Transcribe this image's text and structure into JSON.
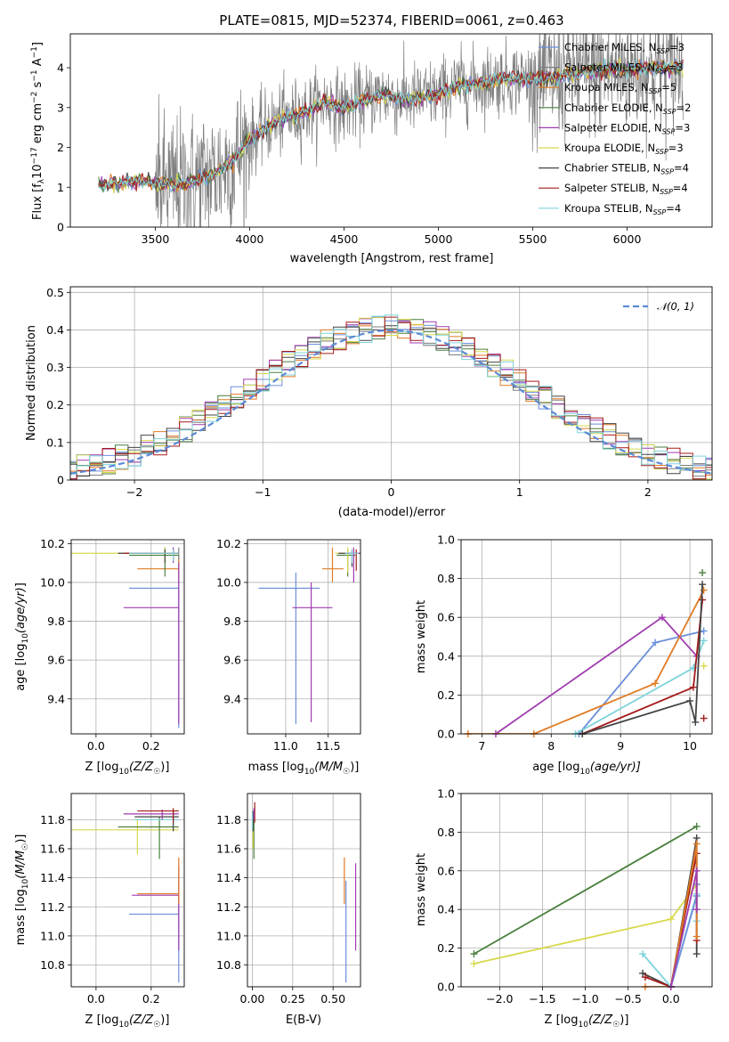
{
  "colors": {
    "CM": "#6b8fdb",
    "SM": "#7f7f7f",
    "KM": "#e07b24",
    "CE": "#4a7f3e",
    "SE": "#a03bb0",
    "KE": "#d7d94c",
    "CS": "#444444",
    "SS": "#a51b1b",
    "KS": "#7fd3db",
    "gauss": "#5b8ad6"
  },
  "chart_data": [
    {
      "type": "line",
      "title": "PLATE=0815, MJD=52374, FIBERID=0061, z=0.463",
      "xlabel": "wavelength [Angstrom, rest frame]",
      "ylabel": "Flux [f$_\\lambda$10$^{-17}$ erg cm$^{-2}$ s$^{-1}$ A$^{-1}$]",
      "ylabel_parts": {
        "a": "Flux [f",
        "b": "λ",
        "c": "10",
        "d": "−17",
        "e": " erg cm",
        "f": "−2",
        "g": " s",
        "h": "−1",
        "i": " A",
        "j": "−1",
        "k": "]"
      },
      "xlim": [
        3050,
        6450
      ],
      "ylim": [
        0,
        4.85
      ],
      "xticks": [
        3500,
        4000,
        4500,
        5000,
        5500,
        6000
      ],
      "yticks": [
        0,
        1,
        2,
        3,
        4
      ],
      "legend_position": "top-right",
      "series": [
        {
          "name": "Chabrier MILES, N",
          "sub": "SSP",
          "suffix": "=3",
          "color_key": "CM"
        },
        {
          "name": "Salpeter MILES, N",
          "sub": "SSP",
          "suffix": "=3",
          "color_key": "SM"
        },
        {
          "name": "Kroupa MILES, N",
          "sub": "SSP",
          "suffix": "=5",
          "color_key": "KM"
        },
        {
          "name": "Chabrier ELODIE, N",
          "sub": "SSP",
          "suffix": "=2",
          "color_key": "CE"
        },
        {
          "name": "Salpeter ELODIE, N",
          "sub": "SSP",
          "suffix": "=3",
          "color_key": "SE"
        },
        {
          "name": "Kroupa ELODIE, N",
          "sub": "SSP",
          "suffix": "=3",
          "color_key": "KE"
        },
        {
          "name": "Chabrier STELIB, N",
          "sub": "SSP",
          "suffix": "=4",
          "color_key": "CS"
        },
        {
          "name": "Salpeter STELIB, N",
          "sub": "SSP",
          "suffix": "=4",
          "color_key": "SS"
        },
        {
          "name": "Kroupa STELIB, N",
          "sub": "SSP",
          "suffix": "=4",
          "color_key": "KS"
        }
      ],
      "continuum": {
        "x": [
          3200,
          3300,
          3400,
          3500,
          3600,
          3700,
          3800,
          3900,
          4000,
          4100,
          4200,
          4300,
          4400,
          4500,
          4600,
          4700,
          4800,
          4900,
          5000,
          5100,
          5200,
          5300,
          5400,
          5500,
          5600,
          5700,
          5800,
          5900,
          6000,
          6100,
          6200,
          6300
        ],
        "y": [
          1.05,
          1.1,
          1.15,
          1.1,
          1.05,
          1.15,
          1.3,
          1.6,
          2.2,
          2.55,
          2.75,
          2.9,
          3.15,
          3.0,
          3.15,
          3.35,
          3.2,
          3.25,
          3.35,
          3.55,
          3.6,
          3.7,
          3.75,
          3.7,
          3.75,
          3.85,
          3.9,
          3.95,
          3.95,
          4.0,
          4.0,
          4.05
        ]
      }
    },
    {
      "type": "line",
      "xlabel": "(data-model)/error",
      "ylabel": "Normed distribution",
      "xlim": [
        -2.5,
        2.5
      ],
      "ylim": [
        0,
        0.515
      ],
      "xticks": [
        -2,
        -1,
        0,
        1,
        2
      ],
      "yticks": [
        0.0,
        0.1,
        0.2,
        0.3,
        0.4,
        0.5
      ],
      "legend_position": "top-right",
      "gauss_label": "𝒩(0, 1)",
      "bin_width": 0.1,
      "note": "step histograms of normalized residuals for each of the 9 model fits plus standard normal curve"
    },
    {
      "type": "scatter",
      "xlabel_main": "Z [log",
      "xlabel_tail": "(Z/Z",
      "xlabel_end": ")]",
      "ylabel": "age  [log10(age/yr)]",
      "xlim": [
        -0.09,
        0.32
      ],
      "ylim": [
        9.22,
        10.22
      ],
      "xticks": [
        0.0,
        0.2
      ],
      "yticks": [
        9.4,
        9.6,
        9.8,
        10.0,
        10.2
      ],
      "points": [
        {
          "k": "CM",
          "x": 0.3,
          "y": 9.97,
          "xl": 0.12,
          "xh": 0.3,
          "yl": 9.25,
          "yh": 10.14
        },
        {
          "k": "SM",
          "x": 0.3,
          "y": 10.15,
          "xl": 0.17,
          "xh": 0.3,
          "yl": 10.12,
          "yh": 10.18
        },
        {
          "k": "KM",
          "x": 0.3,
          "y": 10.07,
          "xl": 0.15,
          "xh": 0.3,
          "yl": 10.02,
          "yh": 10.12
        },
        {
          "k": "CE",
          "x": 0.25,
          "y": 10.14,
          "xl": 0.12,
          "xh": 0.3,
          "yl": 10.03,
          "yh": 10.18
        },
        {
          "k": "SE",
          "x": 0.28,
          "y": 10.15,
          "xl": 0.1,
          "xh": 0.3,
          "yl": 10.1,
          "yh": 10.18
        },
        {
          "k": "KE",
          "x": 0.25,
          "y": 10.15,
          "xl": -0.09,
          "xh": 0.3,
          "yl": 10.1,
          "yh": 10.18
        },
        {
          "k": "CS",
          "x": 0.25,
          "y": 10.15,
          "xl": 0.08,
          "xh": 0.3,
          "yl": 10.1,
          "yh": 10.17
        },
        {
          "k": "SS",
          "x": 0.28,
          "y": 10.15,
          "xl": 0.1,
          "xh": 0.3,
          "yl": 10.11,
          "yh": 10.17
        },
        {
          "k": "KS",
          "x": 0.28,
          "y": 10.15,
          "xl": 0.12,
          "xh": 0.3,
          "yl": 10.11,
          "yh": 10.17
        },
        {
          "k": "SE",
          "x": 0.3,
          "y": 9.87,
          "xl": 0.1,
          "xh": 0.3,
          "yl": 9.27,
          "yh": 10.1
        }
      ]
    },
    {
      "type": "scatter",
      "xlabel_main": "mass [log",
      "xlabel_tail": "(M/M",
      "xlabel_end": ")]",
      "xlim": [
        10.55,
        11.88
      ],
      "ylim": [
        9.22,
        10.22
      ],
      "xticks": [
        11.0,
        11.5
      ],
      "yticks": [
        9.4,
        9.6,
        9.8,
        10.0,
        10.2
      ],
      "points": [
        {
          "k": "CM",
          "x": 11.12,
          "y": 9.97,
          "xl": 10.68,
          "xh": 11.4,
          "yl": 9.27,
          "yh": 10.05
        },
        {
          "k": "SE",
          "x": 11.3,
          "y": 9.87,
          "xl": 11.08,
          "xh": 11.55,
          "yl": 9.28,
          "yh": 10.0
        },
        {
          "k": "KM",
          "x": 11.55,
          "y": 10.07,
          "xl": 11.43,
          "xh": 11.68,
          "yl": 10.0,
          "yh": 10.18
        },
        {
          "k": "CE",
          "x": 11.73,
          "y": 10.14,
          "xl": 11.6,
          "xh": 11.82,
          "yl": 10.03,
          "yh": 10.17
        },
        {
          "k": "KE",
          "x": 11.73,
          "y": 10.15,
          "xl": 11.58,
          "xh": 11.8,
          "yl": 10.05,
          "yh": 10.18
        },
        {
          "k": "CS",
          "x": 11.78,
          "y": 10.15,
          "xl": 11.62,
          "xh": 11.83,
          "yl": 10.08,
          "yh": 10.17
        },
        {
          "k": "SS",
          "x": 11.83,
          "y": 10.15,
          "xl": 11.74,
          "xh": 11.88,
          "yl": 10.06,
          "yh": 10.17
        },
        {
          "k": "SE",
          "x": 11.8,
          "y": 10.15,
          "xl": 11.7,
          "xh": 11.87,
          "yl": 10.0,
          "yh": 10.18
        },
        {
          "k": "KS",
          "x": 11.78,
          "y": 10.15,
          "xl": 11.7,
          "xh": 11.86,
          "yl": 10.1,
          "yh": 10.17
        }
      ]
    },
    {
      "type": "line",
      "xlabel_main": "age  [log",
      "xlabel_tail": "(age/yr)]",
      "ylabel": "mass weight",
      "xlim": [
        6.7,
        10.32
      ],
      "ylim": [
        0,
        1.0
      ],
      "xticks": [
        7,
        8,
        9,
        10
      ],
      "yticks": [
        0.0,
        0.2,
        0.4,
        0.6,
        0.8,
        1.0
      ],
      "series": [
        {
          "k": "CM",
          "x": [
            8.4,
            9.5,
            10.2
          ],
          "y": [
            0.0,
            0.47,
            0.53
          ]
        },
        {
          "k": "SE",
          "x": [
            7.2,
            9.6,
            10.1
          ],
          "y": [
            0.0,
            0.6,
            0.4
          ]
        },
        {
          "k": "KM",
          "x": [
            6.8,
            7.75,
            9.5,
            10.2
          ],
          "y": [
            0.0,
            0.0,
            0.26,
            0.74
          ]
        },
        {
          "k": "KS",
          "x": [
            8.35,
            10.05,
            10.2
          ],
          "y": [
            0.0,
            0.34,
            0.48
          ]
        },
        {
          "k": "SS",
          "x": [
            8.45,
            10.05,
            10.18
          ],
          "y": [
            0.0,
            0.24,
            0.69
          ]
        },
        {
          "k": "CS",
          "x": [
            8.45,
            10.0,
            10.08,
            10.18
          ],
          "y": [
            0.0,
            0.17,
            0.06,
            0.77
          ]
        },
        {
          "k": "CE",
          "x": [
            10.18
          ],
          "y": [
            0.83
          ]
        },
        {
          "k": "KE",
          "x": [
            10.2
          ],
          "y": [
            0.35
          ]
        },
        {
          "k": "SS",
          "x": [
            10.2
          ],
          "y": [
            0.08
          ]
        }
      ]
    },
    {
      "type": "scatter",
      "xlabel_main": "Z [log",
      "xlabel_tail": "(Z/Z",
      "xlabel_end": ")]",
      "ylabel": "mass [log10(M/M☉)]",
      "xlim": [
        -0.09,
        0.32
      ],
      "ylim": [
        10.65,
        11.98
      ],
      "xticks": [
        0.0,
        0.2
      ],
      "yticks": [
        10.8,
        11.0,
        11.2,
        11.4,
        11.6,
        11.8
      ],
      "points": [
        {
          "k": "CM",
          "x": 0.3,
          "y": 11.15,
          "xl": 0.12,
          "xh": 0.3,
          "yl": 10.68,
          "yh": 11.28
        },
        {
          "k": "SE",
          "x": 0.3,
          "y": 11.28,
          "xl": 0.13,
          "xh": 0.3,
          "yl": 10.9,
          "yh": 11.48
        },
        {
          "k": "KM",
          "x": 0.3,
          "y": 11.29,
          "xl": 0.15,
          "xh": 0.3,
          "yl": 11.22,
          "yh": 11.54
        },
        {
          "k": "KE",
          "x": 0.15,
          "y": 11.73,
          "xl": -0.09,
          "xh": 0.3,
          "yl": 11.56,
          "yh": 11.8
        },
        {
          "k": "CE",
          "x": 0.23,
          "y": 11.75,
          "xl": 0.08,
          "xh": 0.3,
          "yl": 11.53,
          "yh": 11.82
        },
        {
          "k": "KS",
          "x": 0.28,
          "y": 11.8,
          "xl": 0.14,
          "xh": 0.3,
          "yl": 11.73,
          "yh": 11.84
        },
        {
          "k": "CS",
          "x": 0.28,
          "y": 11.82,
          "xl": 0.14,
          "xh": 0.3,
          "yl": 11.72,
          "yh": 11.86
        },
        {
          "k": "SE",
          "x": 0.24,
          "y": 11.84,
          "xl": 0.1,
          "xh": 0.3,
          "yl": 11.8,
          "yh": 11.87
        },
        {
          "k": "SS",
          "x": 0.28,
          "y": 11.86,
          "xl": 0.15,
          "xh": 0.3,
          "yl": 11.78,
          "yh": 11.88
        }
      ]
    },
    {
      "type": "scatter",
      "xlabel": "E(B-V)",
      "xlim": [
        -0.03,
        0.67
      ],
      "ylim": [
        10.65,
        11.98
      ],
      "xticks": [
        0.0,
        0.25,
        0.5
      ],
      "yticks": [
        10.8,
        11.0,
        11.2,
        11.4,
        11.6,
        11.8
      ],
      "points": [
        {
          "k": "CM",
          "x": 0.58,
          "y": 11.15,
          "yl": 10.68,
          "yh": 11.38
        },
        {
          "k": "KM",
          "x": 0.57,
          "y": 11.29,
          "yl": 11.22,
          "yh": 11.54
        },
        {
          "k": "SE",
          "x": 0.64,
          "y": 11.28,
          "yl": 10.9,
          "yh": 11.5
        },
        {
          "k": "CE",
          "x": 0.01,
          "y": 11.75,
          "yl": 11.53,
          "yh": 11.82
        },
        {
          "k": "KE",
          "x": 0.005,
          "y": 11.73,
          "yl": 11.6,
          "yh": 11.8
        },
        {
          "k": "CS",
          "x": 0.005,
          "y": 11.82,
          "yl": 11.72,
          "yh": 11.86
        },
        {
          "k": "SS",
          "x": 0.015,
          "y": 11.86,
          "yl": 11.78,
          "yh": 11.92
        },
        {
          "k": "SE",
          "x": 0.01,
          "y": 11.84,
          "yl": 11.8,
          "yh": 11.88
        },
        {
          "k": "KS",
          "x": 0.0,
          "y": 11.8,
          "yl": 11.73,
          "yh": 11.85
        }
      ]
    },
    {
      "type": "line",
      "xlabel_main": "Z [log",
      "xlabel_tail": "(Z/Z",
      "xlabel_end": ")]",
      "ylabel": "mass weight",
      "xlim": [
        -2.45,
        0.48
      ],
      "ylim": [
        0,
        1.0
      ],
      "xticks": [
        -2.0,
        -1.5,
        -1.0,
        -0.5,
        0.0
      ],
      "yticks": [
        0.0,
        0.2,
        0.4,
        0.6,
        0.8,
        1.0
      ],
      "series": [
        {
          "k": "CE",
          "x": [
            -2.3,
            0.3
          ],
          "y": [
            0.17,
            0.83
          ]
        },
        {
          "k": "KE",
          "x": [
            -2.3,
            0.0,
            0.3
          ],
          "y": [
            0.12,
            0.35,
            0.53
          ]
        },
        {
          "k": "CS",
          "x": [
            -0.33,
            0.0,
            0.3,
            0.3
          ],
          "y": [
            0.07,
            0.0,
            0.77,
            0.17
          ]
        },
        {
          "k": "SS",
          "x": [
            -0.3,
            0.0,
            0.3,
            0.3
          ],
          "y": [
            0.05,
            0.0,
            0.69,
            0.24
          ]
        },
        {
          "k": "KS",
          "x": [
            -0.33,
            0.0,
            0.3,
            0.3
          ],
          "y": [
            0.17,
            0.0,
            0.48,
            0.34
          ]
        },
        {
          "k": "CM",
          "x": [
            0.0,
            0.3,
            0.3
          ],
          "y": [
            0.0,
            0.47,
            0.53
          ]
        },
        {
          "k": "KM",
          "x": [
            -0.3,
            0.0,
            0.3,
            0.3
          ],
          "y": [
            0.0,
            0.0,
            0.74,
            0.26
          ]
        },
        {
          "k": "SE",
          "x": [
            0.0,
            0.3,
            0.3
          ],
          "y": [
            0.0,
            0.6,
            0.4
          ]
        }
      ]
    }
  ]
}
